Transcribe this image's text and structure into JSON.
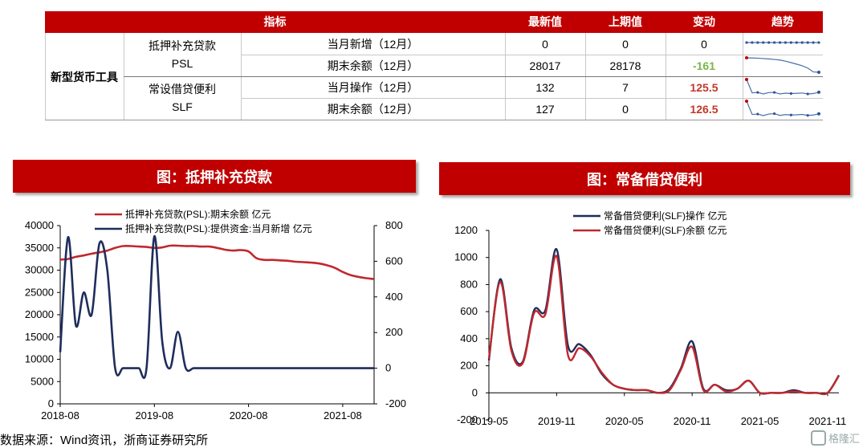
{
  "table": {
    "headers": {
      "indicator": "指标",
      "latest": "最新值",
      "previous": "上期值",
      "change": "变动",
      "trend": "趋势"
    },
    "group_label": "新型货币工具",
    "rows": [
      {
        "tool": "抵押补充贷款",
        "tool2": "PSL",
        "item": "当月新增（12月）",
        "latest": "0",
        "previous": "0",
        "change": "0",
        "trend": [
          0,
          0,
          0,
          0,
          0,
          0,
          0,
          0,
          0,
          0,
          0,
          0,
          0,
          0
        ]
      },
      {
        "tool": "",
        "tool2": "",
        "item": "期末余额（12月）",
        "latest": "28017",
        "previous": "28178",
        "change": "-161",
        "trend": [
          35800,
          35700,
          35600,
          35400,
          35200,
          34900,
          34600,
          34000,
          33200,
          32400,
          31500,
          30300,
          28200,
          28017
        ]
      },
      {
        "tool": "常设借贷便利",
        "tool2": "SLF",
        "item": "当月操作（12月）",
        "latest": "132",
        "previous": "7",
        "change": "125.5",
        "trend": [
          1050,
          360,
          380,
          300,
          370,
          380,
          300,
          340,
          320,
          330,
          350,
          300,
          320,
          390
        ]
      },
      {
        "tool": "",
        "tool2": "",
        "item": "期末余额（12月）",
        "latest": "127",
        "previous": "0",
        "change": "126.5",
        "trend": [
          1010,
          330,
          350,
          270,
          350,
          370,
          280,
          320,
          300,
          310,
          330,
          280,
          300,
          360
        ]
      }
    ],
    "colors": {
      "negative": "#7ab648",
      "positive": "#c0392b",
      "trend_line": "#4a6fa5",
      "trend_marker": "#2f5597",
      "trend_start": "#c00000"
    }
  },
  "banners": {
    "left": "图：抵押补充贷款",
    "right": "图：常备借贷便利"
  },
  "source": "数据来源：Wind资讯，浙商证券研究所",
  "watermark": "格隆汇",
  "chart_data": [
    {
      "type": "line",
      "legend_position": "top",
      "series": [
        {
          "name": "抵押补充贷款(PSL):期末余额 亿元",
          "axis": "left",
          "color": "#c0282d",
          "x": [
            "2018-08",
            "2018-09",
            "2018-10",
            "2018-11",
            "2018-12",
            "2019-01",
            "2019-02",
            "2019-03",
            "2019-04",
            "2019-05",
            "2019-06",
            "2019-07",
            "2019-08",
            "2019-09",
            "2019-10",
            "2019-11",
            "2019-12",
            "2020-01",
            "2020-02",
            "2020-03",
            "2020-04",
            "2020-05",
            "2020-06",
            "2020-07",
            "2020-08",
            "2020-09",
            "2020-10",
            "2020-11",
            "2020-12",
            "2021-01",
            "2021-02",
            "2021-03",
            "2021-04",
            "2021-05",
            "2021-06",
            "2021-07",
            "2021-08",
            "2021-09",
            "2021-10",
            "2021-11",
            "2021-12"
          ],
          "values": [
            32400,
            32500,
            33000,
            33300,
            33700,
            34000,
            34400,
            35000,
            35400,
            35400,
            35300,
            35200,
            35000,
            35100,
            35500,
            35500,
            35400,
            35400,
            35300,
            35300,
            35000,
            34600,
            34400,
            34500,
            34200,
            32700,
            32300,
            32300,
            32200,
            32100,
            31900,
            31800,
            31700,
            31500,
            31100,
            30500,
            29600,
            28900,
            28500,
            28200,
            28017
          ]
        },
        {
          "name": "抵押补充贷款(PSL):提供资金:当月新增 亿元",
          "axis": "right",
          "color": "#1f2d5c",
          "x": [
            "2018-08",
            "2018-09",
            "2018-10",
            "2018-11",
            "2018-12",
            "2019-01",
            "2019-02",
            "2019-03",
            "2019-04",
            "2019-05",
            "2019-06",
            "2019-07",
            "2019-08",
            "2019-09",
            "2019-10",
            "2019-11",
            "2019-12",
            "2020-01",
            "2020-02",
            "2020-03",
            "2020-04",
            "2020-05",
            "2020-06",
            "2020-07",
            "2020-08",
            "2020-09",
            "2020-10",
            "2020-11",
            "2020-12",
            "2021-01",
            "2021-02",
            "2021-03",
            "2021-04",
            "2021-05",
            "2021-06",
            "2021-07",
            "2021-08",
            "2021-09",
            "2021-10",
            "2021-11",
            "2021-12"
          ],
          "values": [
            90,
            735,
            240,
            425,
            300,
            700,
            550,
            0,
            0,
            0,
            0,
            0,
            740,
            150,
            0,
            204,
            0,
            0,
            0,
            0,
            0,
            0,
            0,
            0,
            0,
            0,
            0,
            0,
            0,
            0,
            0,
            0,
            0,
            0,
            0,
            0,
            0,
            0,
            0,
            0,
            0
          ]
        }
      ],
      "y_left": {
        "range": [
          0,
          40000
        ],
        "ticks": [
          "0",
          "5000",
          "10000",
          "15000",
          "20000",
          "25000",
          "30000",
          "35000",
          "40000"
        ]
      },
      "y_right": {
        "range": [
          -200,
          800
        ],
        "ticks": [
          "-200",
          "0",
          "200",
          "400",
          "600",
          "800"
        ]
      },
      "x_ticks": [
        "2018-08",
        "2019-08",
        "2020-08",
        "2021-08"
      ]
    },
    {
      "type": "line",
      "legend_position": "top",
      "series": [
        {
          "name": "常备借贷便利(SLF)操作 亿元",
          "color": "#1f2d5c",
          "x": [
            "2019-05",
            "2019-06",
            "2019-07",
            "2019-08",
            "2019-09",
            "2019-10",
            "2019-11",
            "2019-12",
            "2020-01",
            "2020-02",
            "2020-03",
            "2020-04",
            "2020-05",
            "2020-06",
            "2020-07",
            "2020-08",
            "2020-09",
            "2020-10",
            "2020-11",
            "2020-12",
            "2021-01",
            "2021-02",
            "2021-03",
            "2021-04",
            "2021-05",
            "2021-06",
            "2021-07",
            "2021-08",
            "2021-09",
            "2021-10",
            "2021-11",
            "2021-12"
          ],
          "values": [
            240,
            840,
            330,
            230,
            610,
            610,
            1060,
            350,
            360,
            280,
            140,
            60,
            30,
            20,
            20,
            0,
            30,
            180,
            380,
            30,
            60,
            20,
            30,
            90,
            0,
            0,
            0,
            20,
            0,
            0,
            0,
            130
          ]
        },
        {
          "name": "常备借贷便利(SLF)余额 亿元",
          "color": "#c0282d",
          "x": [
            "2019-05",
            "2019-06",
            "2019-07",
            "2019-08",
            "2019-09",
            "2019-10",
            "2019-11",
            "2019-12",
            "2020-01",
            "2020-02",
            "2020-03",
            "2020-04",
            "2020-05",
            "2020-06",
            "2020-07",
            "2020-08",
            "2020-09",
            "2020-10",
            "2020-11",
            "2020-12",
            "2021-01",
            "2021-02",
            "2021-03",
            "2021-04",
            "2021-05",
            "2021-06",
            "2021-07",
            "2021-08",
            "2021-09",
            "2021-10",
            "2021-11",
            "2021-12"
          ],
          "values": [
            250,
            820,
            310,
            220,
            590,
            580,
            1010,
            280,
            330,
            270,
            150,
            60,
            30,
            20,
            20,
            0,
            20,
            170,
            340,
            20,
            60,
            10,
            30,
            90,
            0,
            0,
            0,
            10,
            0,
            0,
            0,
            127
          ]
        }
      ],
      "y": {
        "range": [
          -200,
          1200
        ],
        "ticks": [
          "-200",
          "0",
          "200",
          "400",
          "600",
          "800",
          "1000",
          "1200"
        ]
      },
      "x_ticks": [
        "2019-05",
        "2019-11",
        "2020-05",
        "2020-11",
        "2021-05",
        "2021-11"
      ]
    }
  ]
}
